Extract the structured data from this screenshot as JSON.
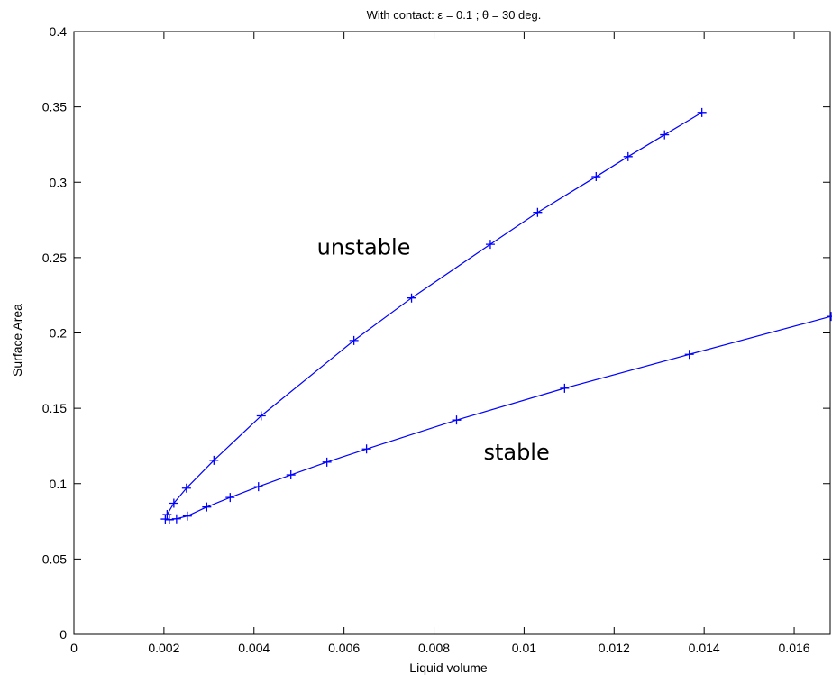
{
  "chart_data": {
    "type": "line",
    "title": "With contact: ε = 0.1 ;  θ = 30 deg.",
    "xlabel": "Liquid volume",
    "ylabel": "Surface Area",
    "xlim": [
      0,
      0.0168
    ],
    "ylim": [
      0,
      0.4
    ],
    "x_ticks": [
      0,
      0.002,
      0.004,
      0.006,
      0.008,
      0.01,
      0.012,
      0.014,
      0.016
    ],
    "x_tick_labels": [
      "0",
      "0.002",
      "0.004",
      "0.006",
      "0.008",
      "0.01",
      "0.012",
      "0.014",
      "0.016"
    ],
    "y_ticks": [
      0,
      0.05,
      0.1,
      0.15,
      0.2,
      0.25,
      0.3,
      0.35,
      0.4
    ],
    "y_tick_labels": [
      "0",
      "0.05",
      "0.1",
      "0.15",
      "0.2",
      "0.25",
      "0.3",
      "0.35",
      "0.4"
    ],
    "grid": false,
    "line_color": "#0000ff",
    "marker": "+",
    "series": [
      {
        "points": [
          [
            0.00207,
            0.0795
          ],
          [
            0.00222,
            0.087
          ],
          [
            0.0025,
            0.097
          ],
          [
            0.00311,
            0.1155
          ],
          [
            0.00416,
            0.145
          ],
          [
            0.00622,
            0.195
          ],
          [
            0.0075,
            0.2232
          ],
          [
            0.00925,
            0.2588
          ],
          [
            0.0103,
            0.28
          ],
          [
            0.0116,
            0.3037
          ],
          [
            0.01231,
            0.317
          ],
          [
            0.01312,
            0.3315
          ],
          [
            0.01395,
            0.3463
          ]
        ]
      },
      {
        "points": [
          [
            0.00203,
            0.0765
          ],
          [
            0.00212,
            0.076
          ],
          [
            0.00228,
            0.0767
          ],
          [
            0.00252,
            0.0785
          ],
          [
            0.00295,
            0.0845
          ],
          [
            0.00347,
            0.0908
          ],
          [
            0.0041,
            0.098
          ],
          [
            0.00482,
            0.1058
          ],
          [
            0.00562,
            0.1143
          ],
          [
            0.0065,
            0.123
          ],
          [
            0.0085,
            0.1422
          ],
          [
            0.0109,
            0.1633
          ],
          [
            0.01367,
            0.1858
          ],
          [
            0.01682,
            0.211
          ]
        ]
      }
    ],
    "annotations": [
      {
        "text": "unstable",
        "x": 0.0054,
        "y": 0.252
      },
      {
        "text": "stable",
        "x": 0.0091,
        "y": 0.116
      }
    ]
  }
}
